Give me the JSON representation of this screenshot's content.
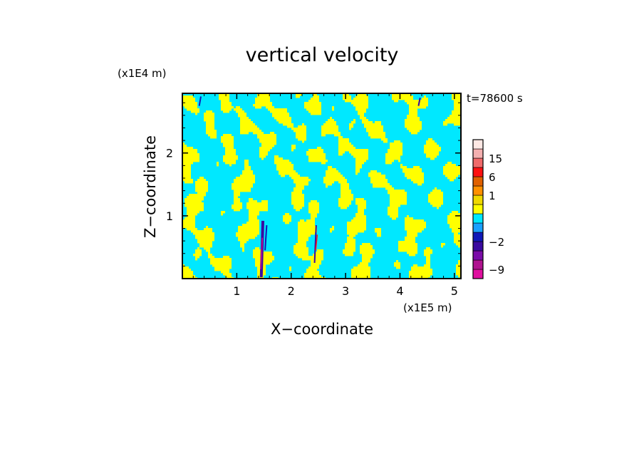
{
  "chart_data": {
    "type": "heatmap",
    "title": "vertical velocity",
    "time_label": "t=78600 s",
    "xlabel": "X−coordinate",
    "ylabel": "Z−coordinate",
    "x_multiplier": "(x1E5 m)",
    "y_multiplier": "(x1E4 m)",
    "xlim": [
      0,
      5.12
    ],
    "ylim": [
      0,
      2.95
    ],
    "x_ticks": [
      1,
      2,
      3,
      4,
      5
    ],
    "y_ticks": [
      1,
      2
    ],
    "colorbar": {
      "levels": [
        -12,
        -9,
        -6,
        -4,
        -2,
        -1,
        -0.5,
        0,
        0.5,
        1,
        3,
        6,
        10,
        15,
        20,
        25
      ],
      "colors": [
        "#e0109f",
        "#b0128f",
        "#7a0ca8",
        "#3a0aa0",
        "#1018b8",
        "#1aa0ff",
        "#00e8ff",
        "#ffff00",
        "#f0d800",
        "#ff9000",
        "#e06000",
        "#ff1010",
        "#f06a6a",
        "#f4b0b0",
        "#fde8e4"
      ],
      "tick_labels": [
        "15",
        "6",
        "1",
        "−2",
        "−9"
      ],
      "tick_values": [
        15,
        6,
        1,
        -2,
        -9
      ]
    }
  }
}
